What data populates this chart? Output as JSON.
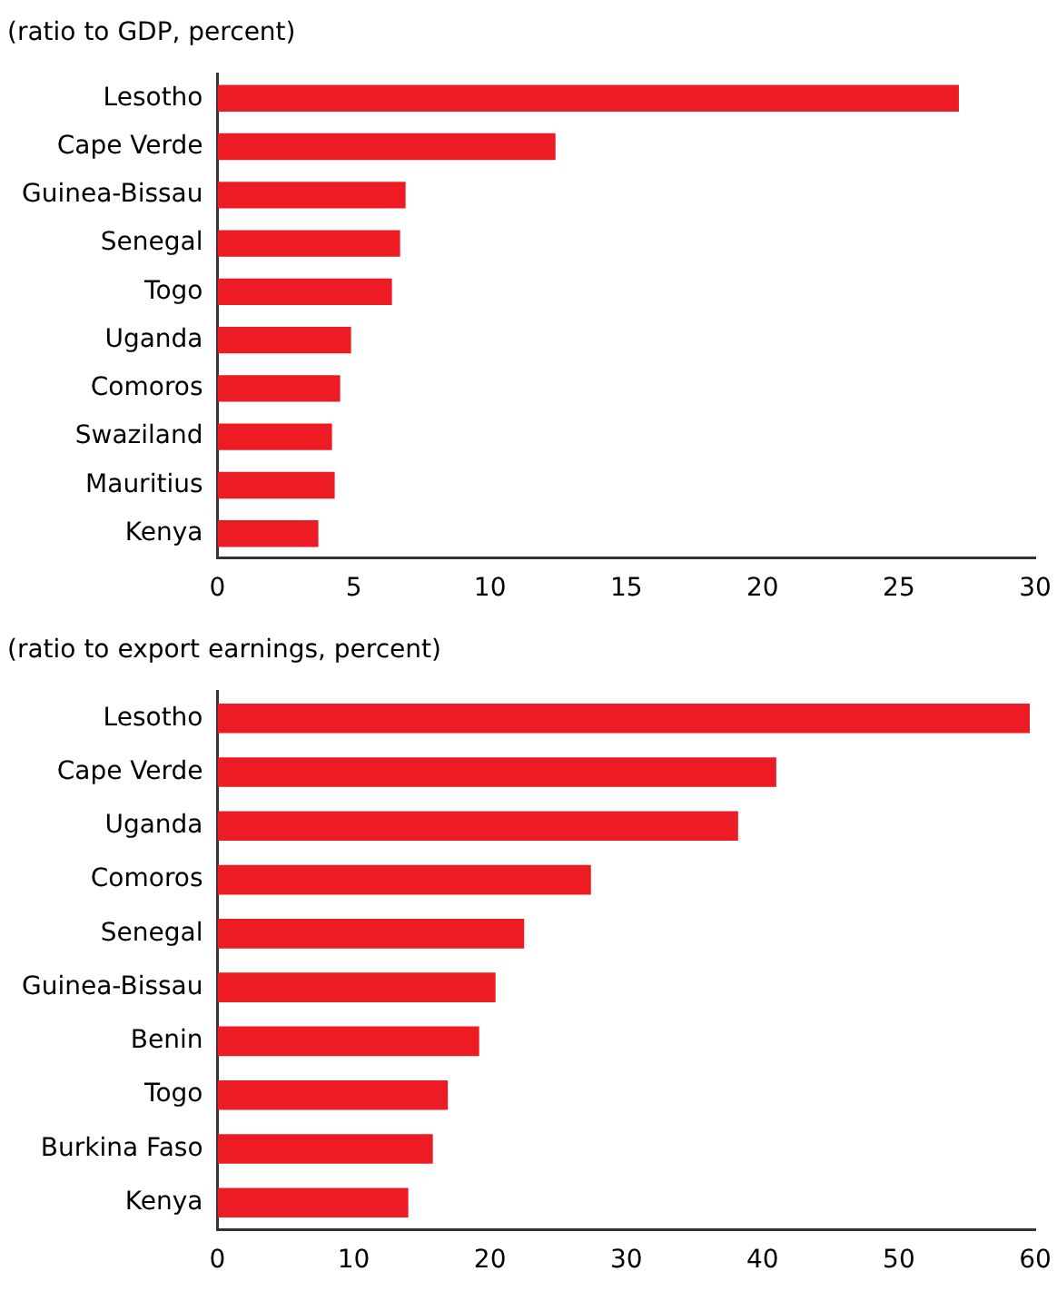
{
  "chart_data": [
    {
      "type": "bar",
      "orientation": "horizontal",
      "title": "(ratio to GDP, percent)",
      "categories": [
        "Lesotho",
        "Cape Verde",
        "Guinea-Bissau",
        "Senegal",
        "Togo",
        "Uganda",
        "Comoros",
        "Swaziland",
        "Mauritius",
        "Kenya"
      ],
      "values": [
        27.2,
        12.4,
        6.9,
        6.7,
        6.4,
        4.9,
        4.5,
        4.2,
        4.3,
        3.7
      ],
      "color": "#ed1c24",
      "xlim": [
        0,
        30
      ],
      "xticks": [
        0,
        5,
        10,
        15,
        20,
        25,
        30
      ],
      "grid": false,
      "legend": false
    },
    {
      "type": "bar",
      "orientation": "horizontal",
      "title": "(ratio to export earnings, percent)",
      "categories": [
        "Lesotho",
        "Cape Verde",
        "Uganda",
        "Comoros",
        "Senegal",
        "Guinea-Bissau",
        "Benin",
        "Togo",
        "Burkina Faso",
        "Kenya"
      ],
      "values": [
        59.6,
        41.0,
        38.2,
        27.4,
        22.5,
        20.4,
        19.2,
        16.9,
        15.8,
        14.0
      ],
      "color": "#ed1c24",
      "xlim": [
        0,
        60
      ],
      "xticks": [
        0,
        10,
        20,
        30,
        40,
        50,
        60
      ],
      "grid": false,
      "legend": false
    }
  ]
}
